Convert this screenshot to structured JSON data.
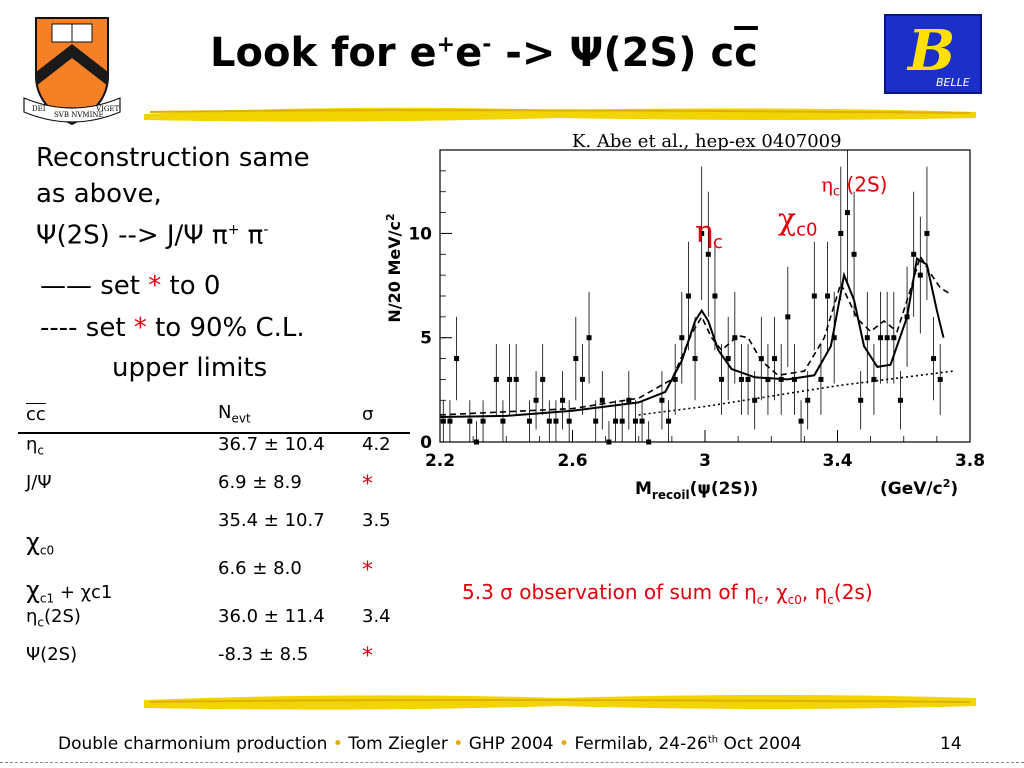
{
  "title": {
    "main": "Look for e",
    "sup1": "+",
    "mid": "e",
    "sup2": "-",
    "arrow": " -> ",
    "psi": "Ψ(2S) c",
    "cbar": "c"
  },
  "logos": {
    "left": {
      "name": "princeton-shield",
      "motto": [
        "DEI",
        "SVB NVMINE",
        "VIGET"
      ],
      "colors": {
        "shield": "#f58025",
        "chevron": "#1a1a1a"
      }
    },
    "right": {
      "name": "belle-logo",
      "letter": "B",
      "text": "BELLE",
      "colors": {
        "bg": "#1c2fc8",
        "letter": "#ffe000"
      }
    }
  },
  "left_text": {
    "line1": "Reconstruction same",
    "line2": "as above,",
    "line3_a": "Ψ(2S) --> J/Ψ π",
    "line3_sup1": "+",
    "line3_b": " π",
    "line3_sup2": "-",
    "legend1_mark": "——",
    "legend1_a": "set ",
    "legend1_star": "*",
    "legend1_b": " to 0",
    "legend2_mark": "----",
    "legend2_a": "set ",
    "legend2_star": "*",
    "legend2_b": " to 90% C.L.",
    "legend2_c": "upper limits"
  },
  "citation": "K. Abe et al., hep-ex 0407009",
  "table": {
    "headers": {
      "state": "cc",
      "nevt": "N",
      "nevt_sub": "evt",
      "sigma": "σ"
    },
    "rows": [
      {
        "sym": "η",
        "sub": "c",
        "extra": "",
        "nevt": "36.7 ± 10.4",
        "sigma": "4.2"
      },
      {
        "sym": "J/Ψ",
        "sub": "",
        "extra": "",
        "nevt": "6.9 ± 8.9",
        "sigma": "*"
      },
      {
        "sym": "χ",
        "sub": "c0",
        "extra": "",
        "nevt": "35.4 ± 10.7",
        "sigma": "3.5"
      },
      {
        "sym": "χ",
        "sub": "c1",
        "extra": " + χc1",
        "nevt": "6.6 ± 8.0",
        "sigma": "*"
      },
      {
        "sym": "η",
        "sub": "c",
        "extra": "(2S)",
        "nevt": "36.0 ± 11.4",
        "sigma": "3.4"
      },
      {
        "sym": "Ψ(2S)",
        "sub": "",
        "extra": "",
        "nevt": "-8.3 ± 8.5",
        "sigma": "*"
      }
    ]
  },
  "observation": {
    "a": "5.3 ",
    "sigma": "σ",
    "b": " observation of sum of ",
    "eta1": "η",
    "eta1_sub": "c",
    "comma1": ", ",
    "chi": "χ",
    "chi_sub": "c0",
    "comma2": ", ",
    "eta2": "η",
    "eta2_sub": "c",
    "tail": "(2s)"
  },
  "footer": {
    "part1": "Double charmonium production",
    "part2": "Tom Ziegler",
    "part3": "GHP 2004",
    "part4": "Fermilab, 24-26",
    "part4_sup": "th",
    "part4_tail": " Oct 2004",
    "bullet": "•",
    "page": "14"
  },
  "chart_data": {
    "type": "scatter",
    "title": "",
    "xlabel": "M",
    "xlabel_sub": "recoil",
    "xlabel_tail": "(ψ(2S))",
    "xunit": "(GeV/c",
    "xunit_sup": "2",
    "xunit_tail": ")",
    "ylabel": "N/20 MeV/c",
    "ylabel_sup": "2",
    "xlim": [
      2.2,
      3.8
    ],
    "ylim": [
      0,
      14
    ],
    "x_ticks": [
      2.2,
      2.6,
      3.0,
      3.4,
      3.8
    ],
    "x_tick_labels": [
      "2.2",
      "2.6",
      "3",
      "3.4",
      "3.8"
    ],
    "y_ticks": [
      0,
      5,
      10
    ],
    "y_tick_labels": [
      "0",
      "5",
      "10"
    ],
    "annotations": [
      {
        "sym": "η",
        "sub": "c",
        "tail": "",
        "x": 2.97,
        "y": 9.6,
        "size": "big"
      },
      {
        "sym": "χ",
        "sub": "c0",
        "tail": "",
        "x": 3.22,
        "y": 10.2,
        "size": "big"
      },
      {
        "sym": "η",
        "sub": "c",
        "tail": " (2S)",
        "x": 3.35,
        "y": 12.0,
        "size": "small"
      }
    ],
    "data_points": [
      {
        "x": 2.21,
        "y": 1,
        "err": 1.0
      },
      {
        "x": 2.23,
        "y": 1,
        "err": 1.0
      },
      {
        "x": 2.25,
        "y": 4,
        "err": 2.0
      },
      {
        "x": 2.29,
        "y": 1,
        "err": 1.0
      },
      {
        "x": 2.31,
        "y": 0,
        "err": 1.0
      },
      {
        "x": 2.33,
        "y": 1,
        "err": 1.0
      },
      {
        "x": 2.37,
        "y": 3,
        "err": 1.7
      },
      {
        "x": 2.39,
        "y": 1,
        "err": 1.0
      },
      {
        "x": 2.41,
        "y": 3,
        "err": 1.7
      },
      {
        "x": 2.43,
        "y": 3,
        "err": 1.7
      },
      {
        "x": 2.47,
        "y": 1,
        "err": 1.0
      },
      {
        "x": 2.49,
        "y": 2,
        "err": 1.4
      },
      {
        "x": 2.51,
        "y": 3,
        "err": 1.7
      },
      {
        "x": 2.53,
        "y": 1,
        "err": 1.0
      },
      {
        "x": 2.55,
        "y": 1,
        "err": 1.0
      },
      {
        "x": 2.57,
        "y": 2,
        "err": 1.4
      },
      {
        "x": 2.59,
        "y": 1,
        "err": 1.0
      },
      {
        "x": 2.61,
        "y": 4,
        "err": 2.0
      },
      {
        "x": 2.63,
        "y": 3,
        "err": 1.7
      },
      {
        "x": 2.65,
        "y": 5,
        "err": 2.2
      },
      {
        "x": 2.67,
        "y": 1,
        "err": 1.0
      },
      {
        "x": 2.69,
        "y": 2,
        "err": 1.4
      },
      {
        "x": 2.71,
        "y": 0,
        "err": 1.0
      },
      {
        "x": 2.73,
        "y": 1,
        "err": 1.0
      },
      {
        "x": 2.75,
        "y": 1,
        "err": 1.0
      },
      {
        "x": 2.77,
        "y": 2,
        "err": 1.4
      },
      {
        "x": 2.79,
        "y": 1,
        "err": 1.0
      },
      {
        "x": 2.81,
        "y": 1,
        "err": 1.0
      },
      {
        "x": 2.83,
        "y": 0,
        "err": 1.0
      },
      {
        "x": 2.87,
        "y": 2,
        "err": 1.4
      },
      {
        "x": 2.89,
        "y": 1,
        "err": 1.0
      },
      {
        "x": 2.91,
        "y": 3,
        "err": 1.7
      },
      {
        "x": 2.93,
        "y": 5,
        "err": 2.2
      },
      {
        "x": 2.95,
        "y": 7,
        "err": 2.6
      },
      {
        "x": 2.97,
        "y": 4,
        "err": 2.0
      },
      {
        "x": 2.99,
        "y": 10,
        "err": 3.2
      },
      {
        "x": 3.01,
        "y": 9,
        "err": 3.0
      },
      {
        "x": 3.03,
        "y": 7,
        "err": 2.6
      },
      {
        "x": 3.05,
        "y": 3,
        "err": 1.7
      },
      {
        "x": 3.07,
        "y": 4,
        "err": 2.0
      },
      {
        "x": 3.09,
        "y": 5,
        "err": 2.2
      },
      {
        "x": 3.11,
        "y": 3,
        "err": 1.7
      },
      {
        "x": 3.13,
        "y": 3,
        "err": 1.7
      },
      {
        "x": 3.15,
        "y": 2,
        "err": 1.4
      },
      {
        "x": 3.17,
        "y": 4,
        "err": 2.0
      },
      {
        "x": 3.19,
        "y": 3,
        "err": 1.7
      },
      {
        "x": 3.21,
        "y": 4,
        "err": 2.0
      },
      {
        "x": 3.23,
        "y": 3,
        "err": 1.7
      },
      {
        "x": 3.25,
        "y": 6,
        "err": 2.4
      },
      {
        "x": 3.27,
        "y": 3,
        "err": 1.7
      },
      {
        "x": 3.29,
        "y": 1,
        "err": 1.0
      },
      {
        "x": 3.31,
        "y": 2,
        "err": 1.4
      },
      {
        "x": 3.33,
        "y": 7,
        "err": 2.6
      },
      {
        "x": 3.35,
        "y": 3,
        "err": 1.7
      },
      {
        "x": 3.37,
        "y": 7,
        "err": 2.6
      },
      {
        "x": 3.39,
        "y": 5,
        "err": 2.2
      },
      {
        "x": 3.41,
        "y": 10,
        "err": 3.2
      },
      {
        "x": 3.43,
        "y": 11,
        "err": 3.3
      },
      {
        "x": 3.45,
        "y": 9,
        "err": 3.0
      },
      {
        "x": 3.47,
        "y": 2,
        "err": 1.4
      },
      {
        "x": 3.49,
        "y": 5,
        "err": 2.2
      },
      {
        "x": 3.51,
        "y": 3,
        "err": 1.7
      },
      {
        "x": 3.53,
        "y": 5,
        "err": 2.2
      },
      {
        "x": 3.55,
        "y": 5,
        "err": 2.2
      },
      {
        "x": 3.57,
        "y": 5,
        "err": 2.2
      },
      {
        "x": 3.59,
        "y": 2,
        "err": 1.4
      },
      {
        "x": 3.61,
        "y": 6,
        "err": 2.4
      },
      {
        "x": 3.63,
        "y": 9,
        "err": 3.0
      },
      {
        "x": 3.65,
        "y": 8,
        "err": 2.8
      },
      {
        "x": 3.67,
        "y": 10,
        "err": 3.2
      },
      {
        "x": 3.69,
        "y": 4,
        "err": 2.0
      },
      {
        "x": 3.71,
        "y": 3,
        "err": 1.7
      }
    ],
    "series": [
      {
        "style": "solid",
        "points": [
          [
            2.2,
            1.2
          ],
          [
            2.4,
            1.25
          ],
          [
            2.6,
            1.5
          ],
          [
            2.8,
            1.9
          ],
          [
            2.88,
            2.4
          ],
          [
            2.93,
            3.9
          ],
          [
            2.97,
            5.8
          ],
          [
            2.99,
            6.3
          ],
          [
            3.01,
            5.8
          ],
          [
            3.04,
            4.4
          ],
          [
            3.08,
            3.5
          ],
          [
            3.15,
            3.1
          ],
          [
            3.25,
            3.0
          ],
          [
            3.33,
            3.2
          ],
          [
            3.38,
            4.6
          ],
          [
            3.42,
            8.0
          ],
          [
            3.45,
            6.8
          ],
          [
            3.48,
            4.6
          ],
          [
            3.52,
            3.6
          ],
          [
            3.56,
            3.7
          ],
          [
            3.61,
            6.0
          ],
          [
            3.64,
            8.8
          ],
          [
            3.67,
            8.5
          ],
          [
            3.7,
            6.3
          ],
          [
            3.72,
            5.0
          ]
        ]
      },
      {
        "style": "dashed",
        "points": [
          [
            2.2,
            1.3
          ],
          [
            2.6,
            1.6
          ],
          [
            2.8,
            2.1
          ],
          [
            2.9,
            3.0
          ],
          [
            2.96,
            5.2
          ],
          [
            2.99,
            6.0
          ],
          [
            3.02,
            5.0
          ],
          [
            3.05,
            4.4
          ],
          [
            3.1,
            5.1
          ],
          [
            3.13,
            5.0
          ],
          [
            3.17,
            3.9
          ],
          [
            3.22,
            3.2
          ],
          [
            3.3,
            3.4
          ],
          [
            3.36,
            5.0
          ],
          [
            3.41,
            7.6
          ],
          [
            3.46,
            5.9
          ],
          [
            3.5,
            5.3
          ],
          [
            3.54,
            5.8
          ],
          [
            3.58,
            5.3
          ],
          [
            3.62,
            7.3
          ],
          [
            3.65,
            8.9
          ],
          [
            3.68,
            8.1
          ],
          [
            3.71,
            7.4
          ],
          [
            3.74,
            7.1
          ]
        ]
      },
      {
        "style": "dotted",
        "points": [
          [
            2.8,
            1.3
          ],
          [
            3.0,
            1.7
          ],
          [
            3.2,
            2.2
          ],
          [
            3.4,
            2.7
          ],
          [
            3.6,
            3.1
          ],
          [
            3.75,
            3.4
          ]
        ]
      }
    ]
  }
}
